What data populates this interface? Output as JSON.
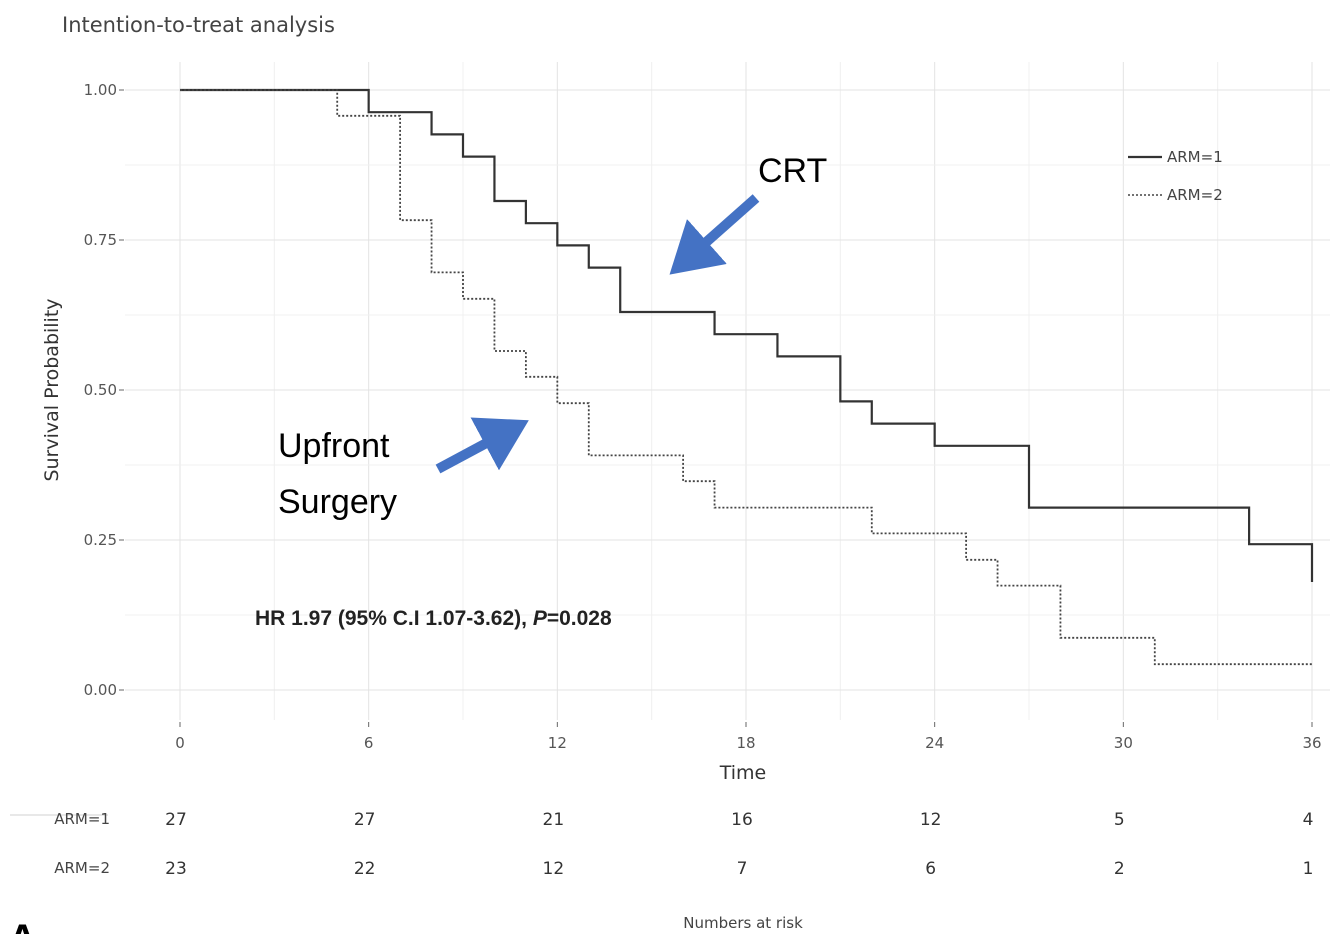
{
  "chart_data": {
    "type": "line",
    "subtype": "kaplan-meier",
    "title": "Intention-to-treat analysis",
    "xlabel": "Time",
    "ylabel": "Survival Probability",
    "xlim": [
      0,
      36
    ],
    "ylim": [
      0,
      1
    ],
    "xticks": [
      0,
      6,
      12,
      18,
      24,
      30,
      36
    ],
    "yticks": [
      0.0,
      0.25,
      0.5,
      0.75,
      1.0
    ],
    "ytick_labels": [
      "0.00",
      "0.25",
      "0.50",
      "0.75",
      "1.00"
    ],
    "grid": true,
    "legend_position": "top-right",
    "series": [
      {
        "name": "ARM=1",
        "line_style": "solid",
        "color": "#333333",
        "steps": [
          [
            0,
            1.0
          ],
          [
            6,
            0.963
          ],
          [
            8,
            0.926
          ],
          [
            9,
            0.889
          ],
          [
            10,
            0.815
          ],
          [
            11,
            0.778
          ],
          [
            12,
            0.741
          ],
          [
            13,
            0.704
          ],
          [
            14,
            0.63
          ],
          [
            17,
            0.593
          ],
          [
            19,
            0.556
          ],
          [
            21,
            0.481
          ],
          [
            22,
            0.444
          ],
          [
            24,
            0.407
          ],
          [
            27,
            0.304
          ],
          [
            34,
            0.243
          ],
          [
            36,
            0.18
          ]
        ]
      },
      {
        "name": "ARM=2",
        "line_style": "dotted",
        "color": "#444444",
        "steps": [
          [
            0,
            1.0
          ],
          [
            5,
            0.957
          ],
          [
            7,
            0.783
          ],
          [
            8,
            0.696
          ],
          [
            9,
            0.652
          ],
          [
            10,
            0.565
          ],
          [
            11,
            0.522
          ],
          [
            12,
            0.478
          ],
          [
            13,
            0.391
          ],
          [
            16,
            0.348
          ],
          [
            17,
            0.304
          ],
          [
            22,
            0.261
          ],
          [
            25,
            0.217
          ],
          [
            26,
            0.174
          ],
          [
            28,
            0.087
          ],
          [
            31,
            0.043
          ],
          [
            36,
            0.043
          ]
        ]
      }
    ],
    "annotations": {
      "crt_label": "CRT",
      "upfront_label_line1": "Upfront",
      "upfront_label_line2": "Surgery",
      "hr_prefix": "HR 1.97 (95% C.I 1.07-3.62), ",
      "hr_p_symbol": "P",
      "hr_p_value": "=0.028",
      "arrow_color": "#4472c4"
    },
    "risk_table": {
      "title": "Numbers at risk",
      "times": [
        0,
        6,
        12,
        18,
        24,
        30,
        36
      ],
      "rows": [
        {
          "label": "ARM=1",
          "values": [
            "27",
            "27",
            "21",
            "16",
            "12",
            "5",
            "4"
          ]
        },
        {
          "label": "ARM=2",
          "values": [
            "23",
            "22",
            "12",
            "7",
            "6",
            "2",
            "1"
          ]
        }
      ]
    },
    "panel_letter": "A"
  }
}
